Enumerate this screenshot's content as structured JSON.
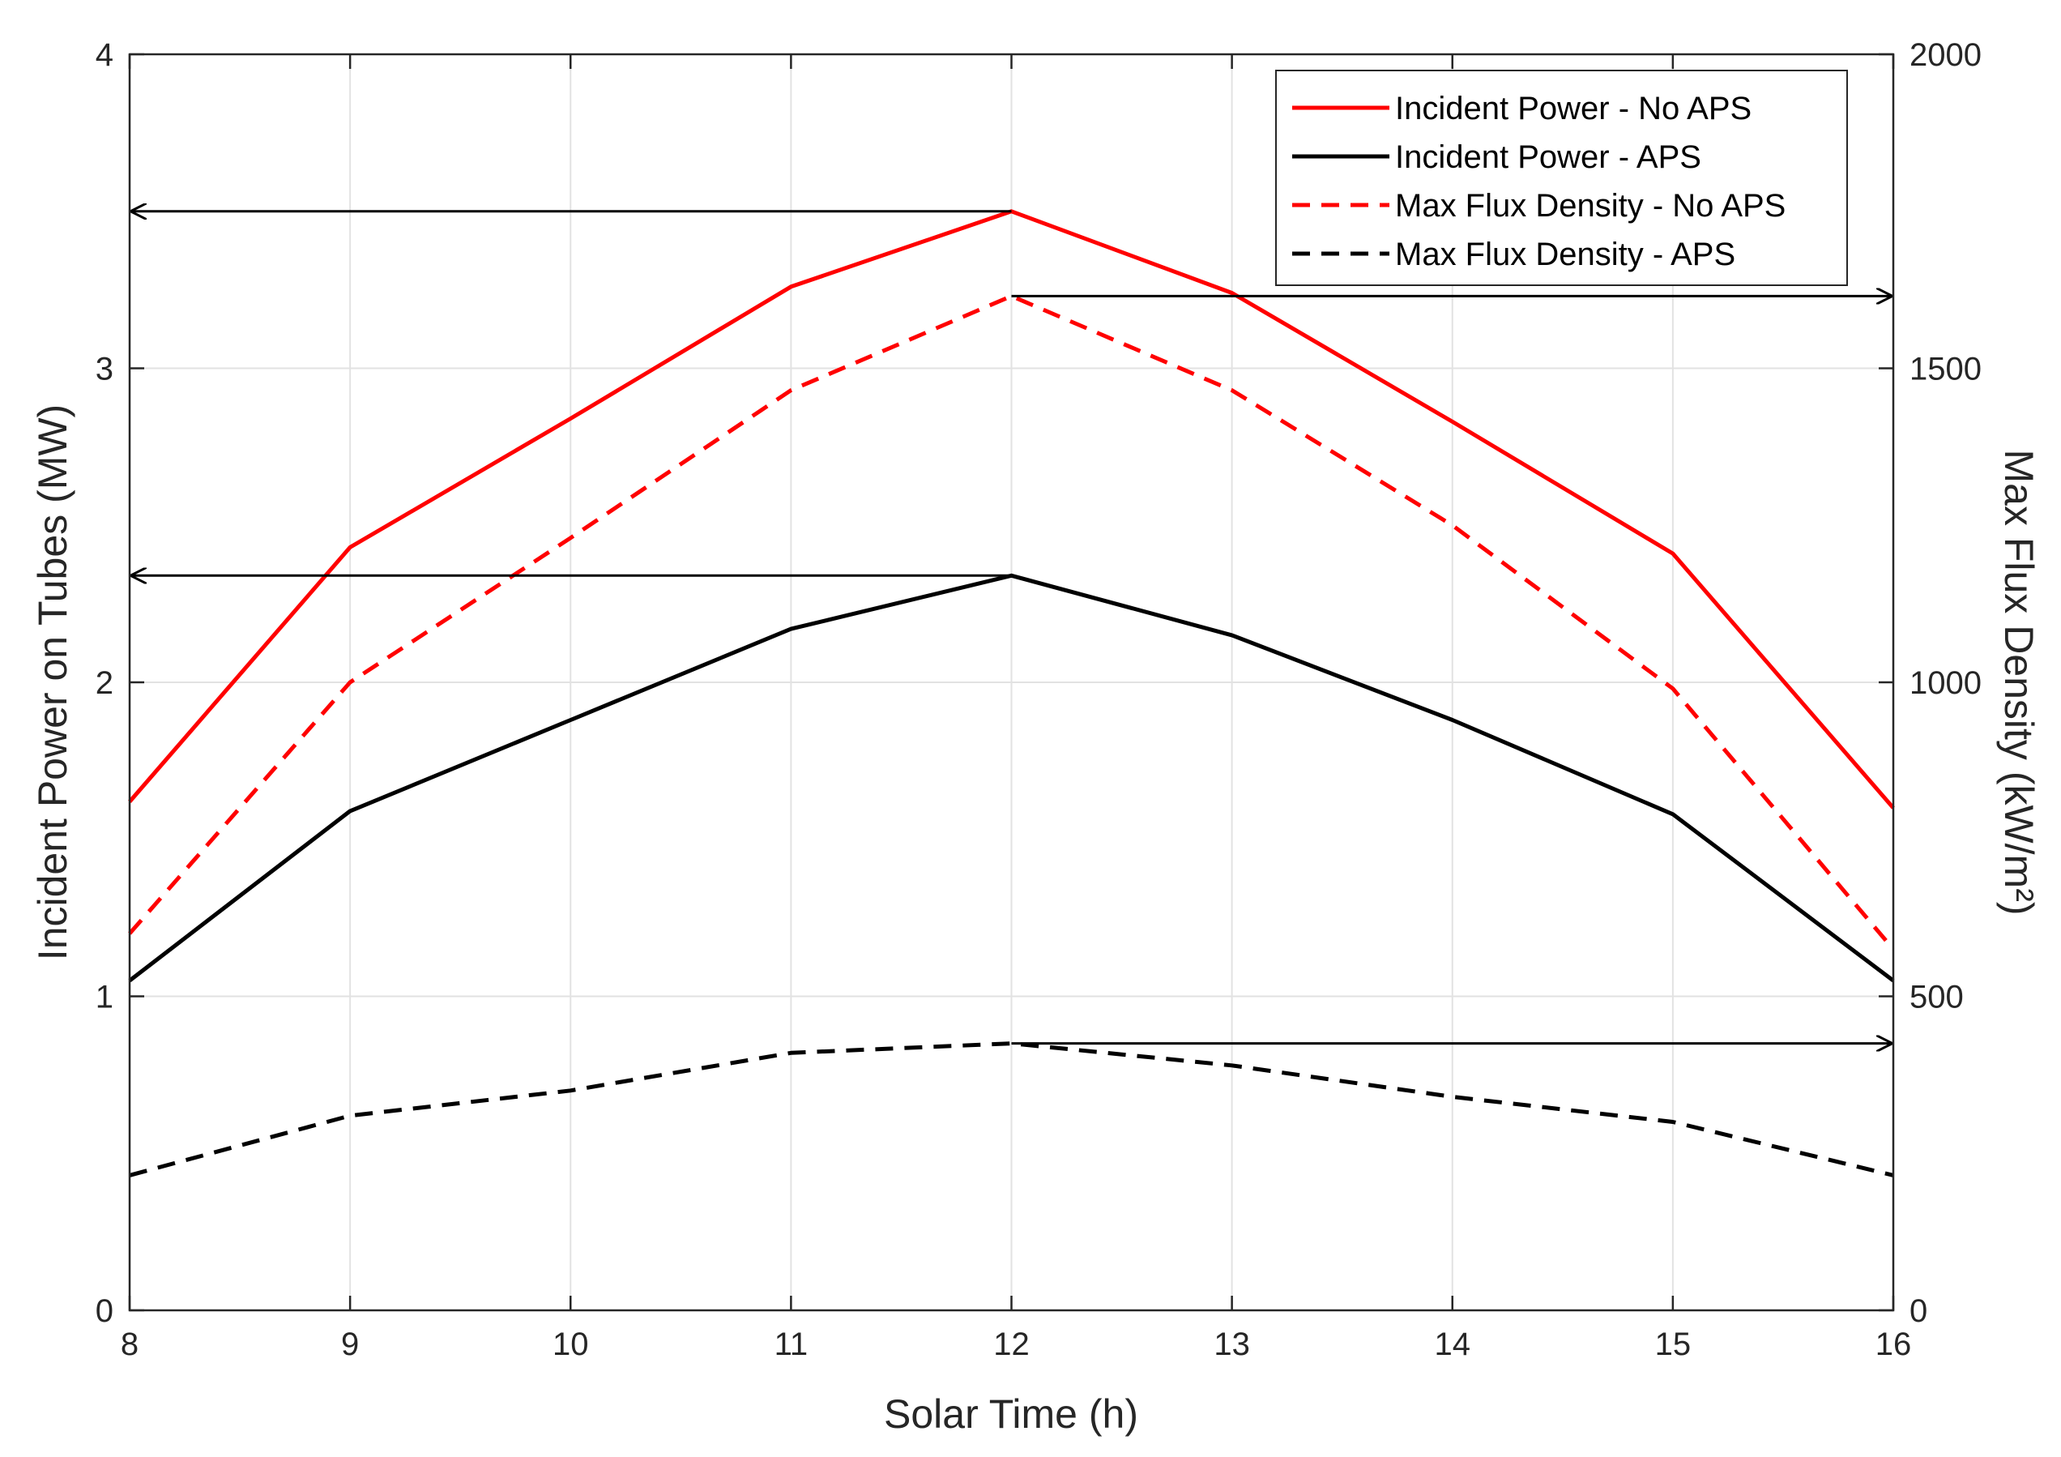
{
  "chart_data": {
    "type": "line",
    "title": "",
    "xlabel": "Solar Time (h)",
    "ylabel_left": "Incident Power on Tubes (MW)",
    "ylabel_right": "Max Flux Density (kW/m²)",
    "xlim": [
      8,
      16
    ],
    "ylim_left": [
      0,
      4
    ],
    "ylim_right": [
      0,
      2000
    ],
    "xticks": [
      8,
      9,
      10,
      11,
      12,
      13,
      14,
      15,
      16
    ],
    "yticks_left": [
      0,
      1,
      2,
      3,
      4
    ],
    "yticks_right": [
      0,
      500,
      1000,
      1500,
      2000
    ],
    "grid": true,
    "legend_position": "top-right",
    "x": [
      8,
      9,
      10,
      11,
      12,
      13,
      14,
      15,
      16
    ],
    "series": [
      {
        "name": "Incident Power - No APS",
        "axis": "left",
        "style": "solid",
        "color": "#ff0000",
        "values": [
          1.62,
          2.43,
          2.84,
          3.26,
          3.5,
          3.24,
          2.83,
          2.41,
          1.6
        ]
      },
      {
        "name": "Incident Power - APS",
        "axis": "left",
        "style": "solid",
        "color": "#000000",
        "values": [
          1.05,
          1.59,
          1.88,
          2.17,
          2.34,
          2.15,
          1.88,
          1.58,
          1.05
        ]
      },
      {
        "name": "Max Flux Density - No APS",
        "axis": "right",
        "style": "dashed",
        "color": "#ff0000",
        "values": [
          600,
          1000,
          1230,
          1465,
          1615,
          1465,
          1250,
          990,
          575
        ]
      },
      {
        "name": "Max Flux Density - APS",
        "axis": "right",
        "style": "dashed",
        "color": "#000000",
        "values": [
          215,
          310,
          350,
          410,
          425,
          390,
          340,
          300,
          215
        ]
      }
    ],
    "annotations": [
      {
        "type": "arrow",
        "from_x": 12,
        "to": "left-axis",
        "y": 3.5,
        "axis": "left"
      },
      {
        "type": "arrow",
        "from_x": 12,
        "to": "left-axis",
        "y": 2.34,
        "axis": "left"
      },
      {
        "type": "arrow",
        "from_x": 12,
        "to": "right-axis",
        "y": 1615,
        "axis": "right"
      },
      {
        "type": "arrow",
        "from_x": 12,
        "to": "right-axis",
        "y": 425,
        "axis": "right"
      }
    ]
  }
}
